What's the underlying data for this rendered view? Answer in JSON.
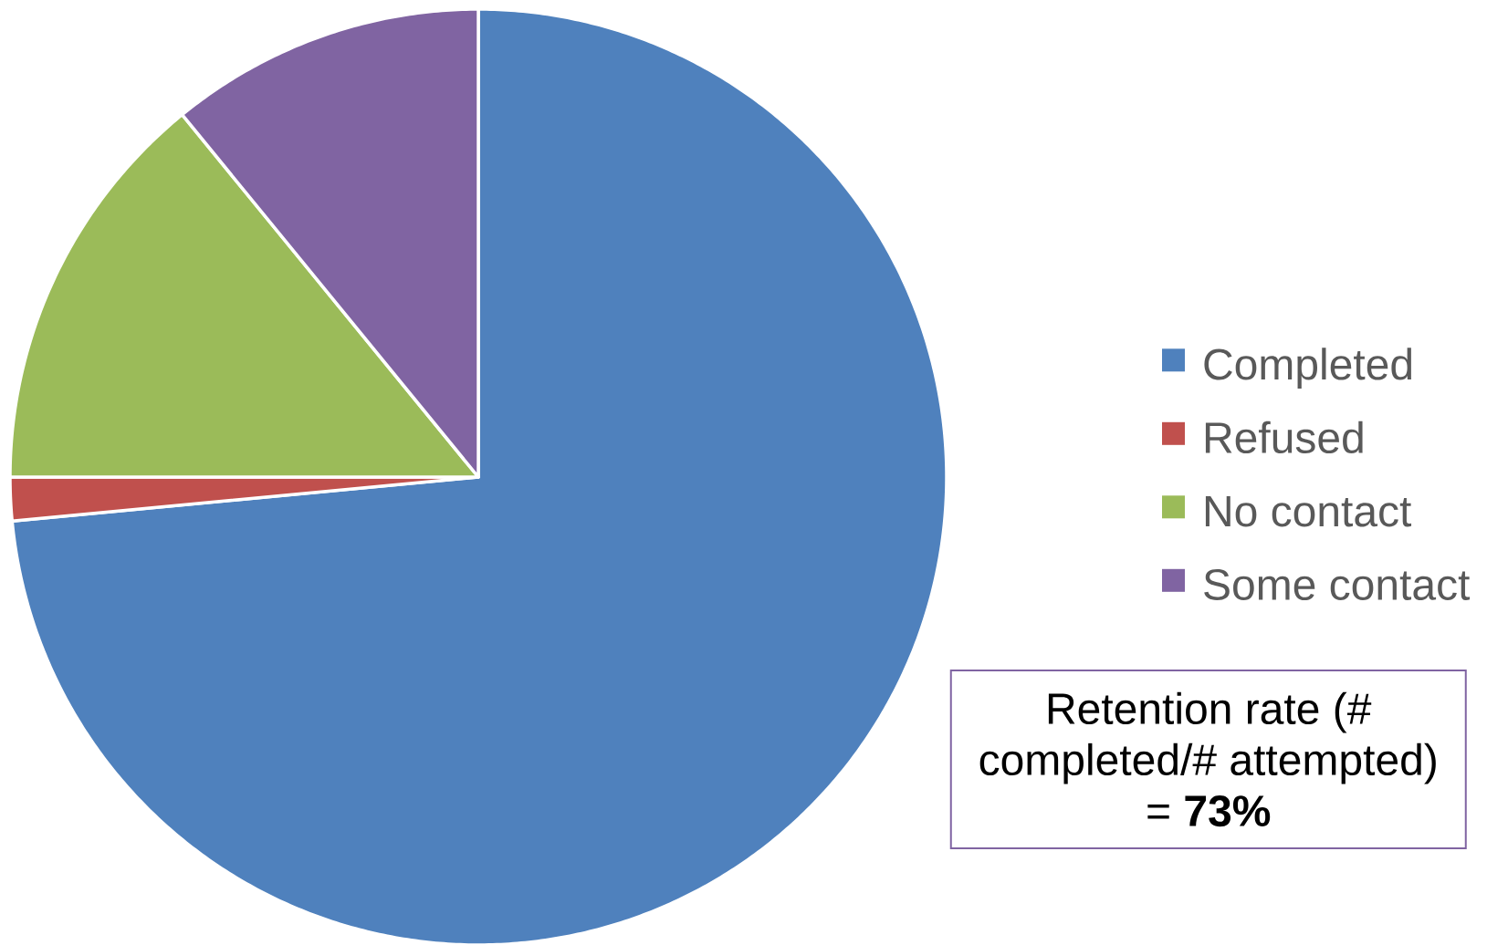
{
  "chart_data": {
    "type": "pie",
    "categories": [
      "Completed",
      "Refused",
      "No contact",
      "Some contact"
    ],
    "values": [
      73.5,
      1.5,
      14.1,
      10.9
    ],
    "colors": [
      "#4f81bd",
      "#c0504d",
      "#9bbb59",
      "#8064a2"
    ],
    "legend": "right",
    "annotations": [
      "Retention rate (# completed/# attempted) = **73%**"
    ]
  }
}
